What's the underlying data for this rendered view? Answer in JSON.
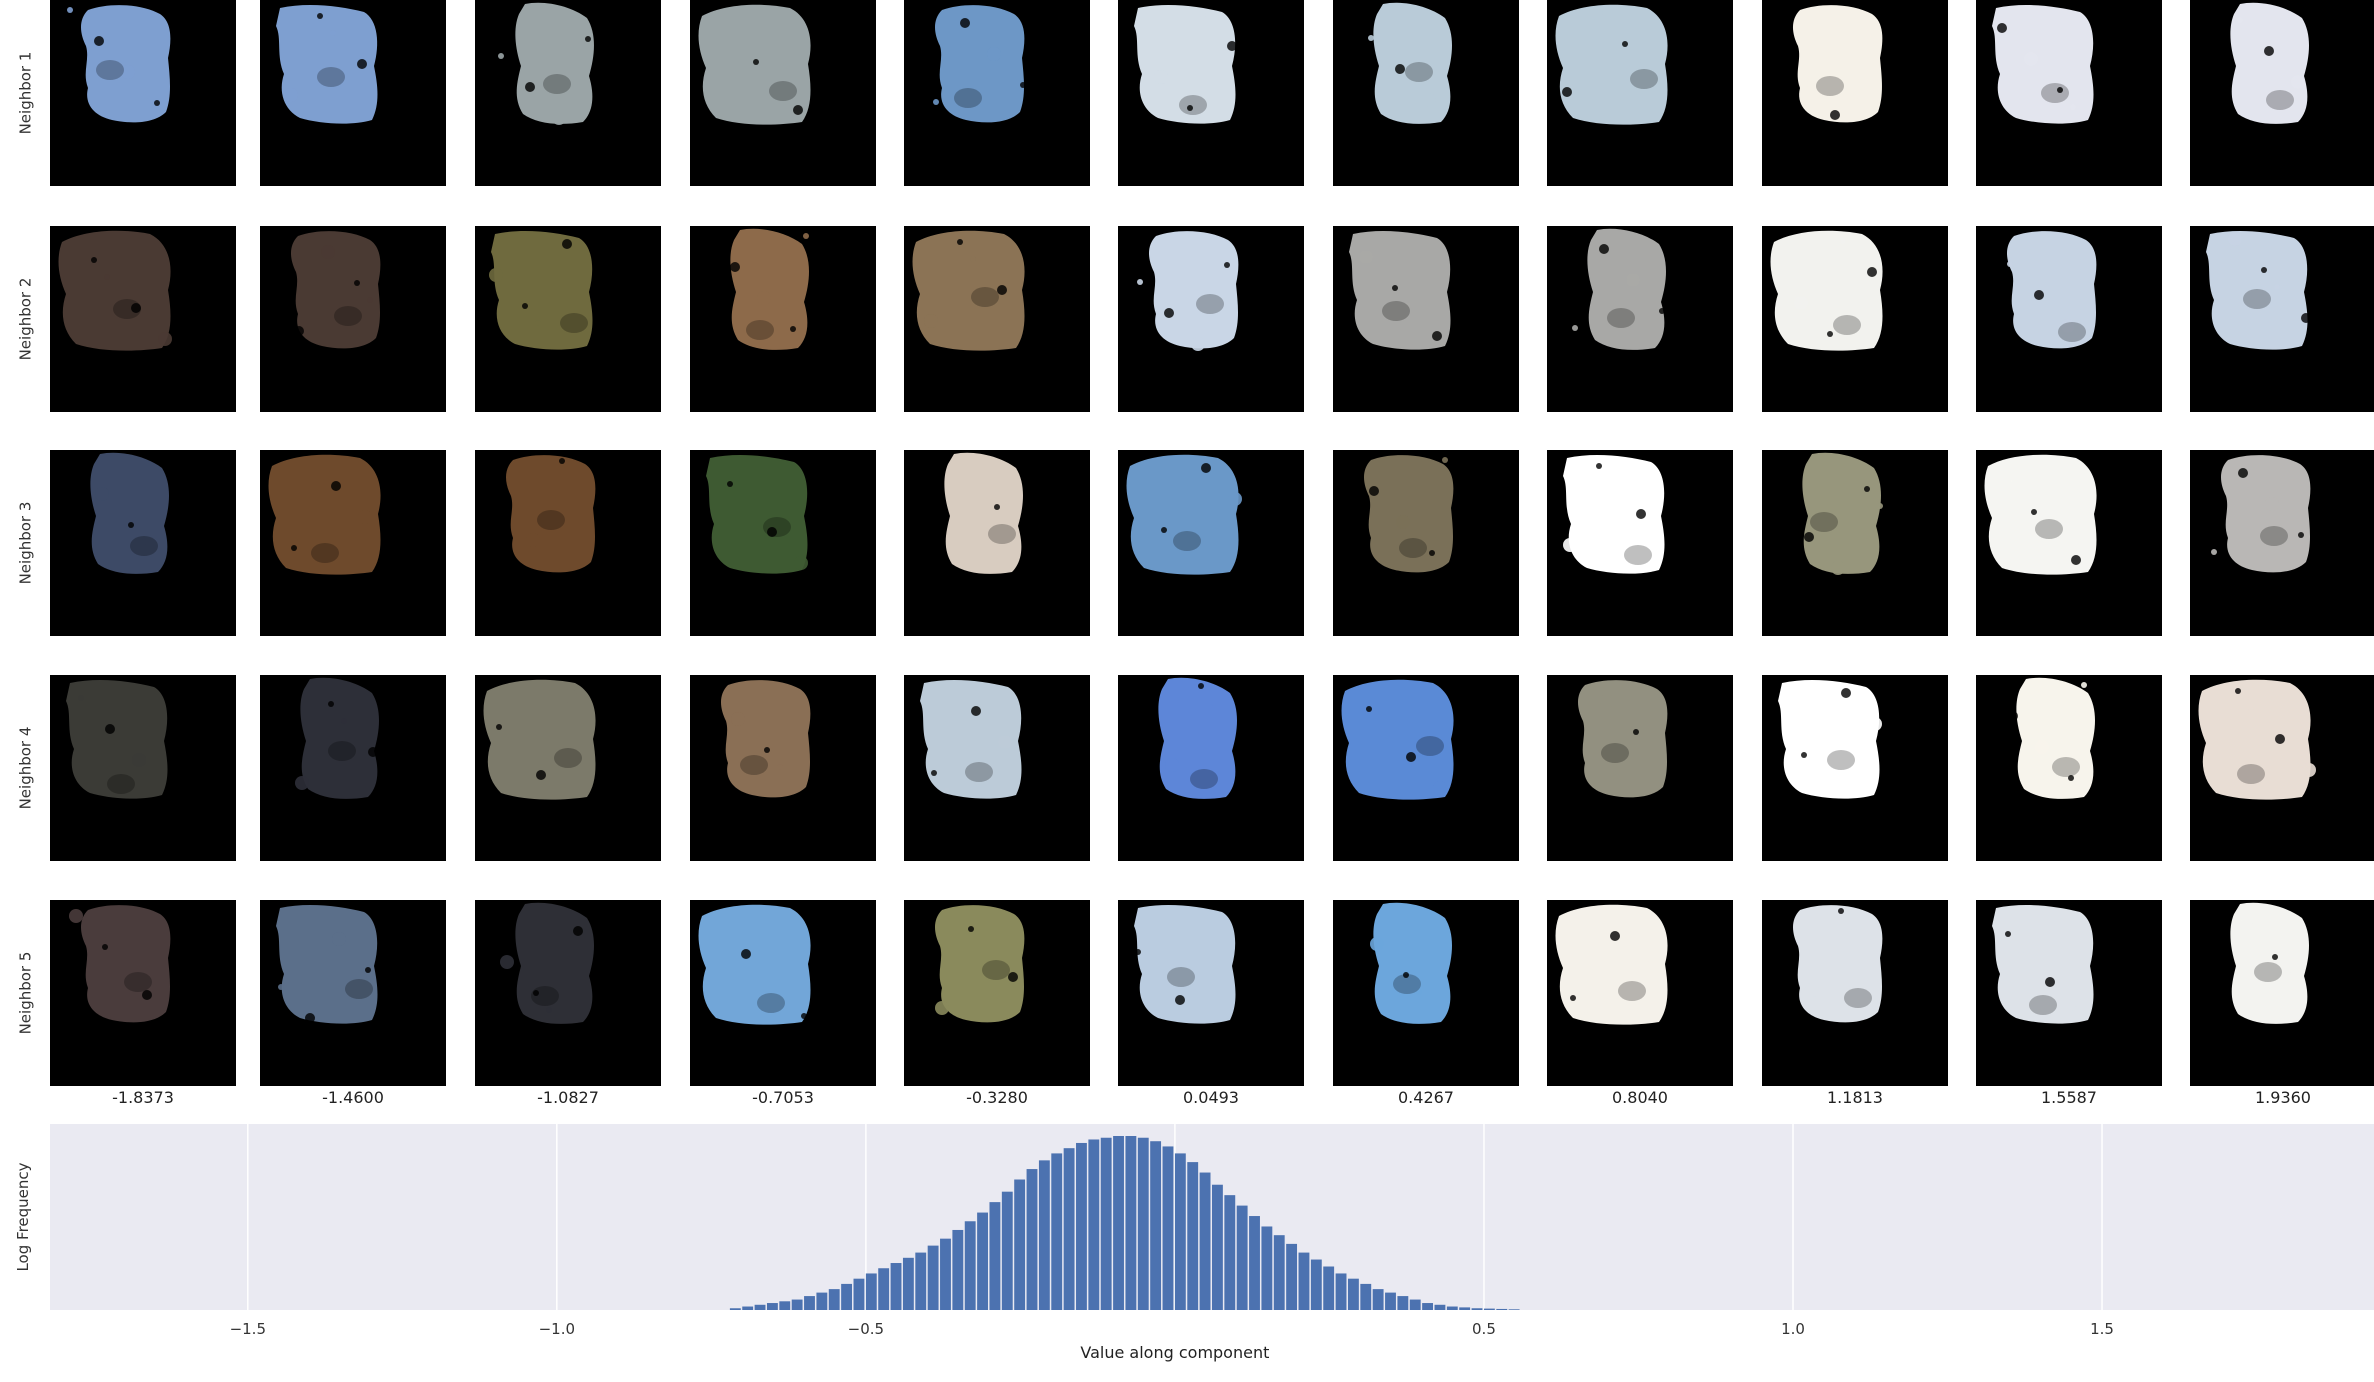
{
  "figure": {
    "row_labels": [
      "Neighbor 1",
      "Neighbor 2",
      "Neighbor 3",
      "Neighbor 4",
      "Neighbor 5"
    ],
    "column_values": [
      "-1.8373",
      "-1.4600",
      "-1.0827",
      "-0.7053",
      "-0.3280",
      "0.0493",
      "0.4267",
      "0.8040",
      "1.1813",
      "1.5587",
      "1.9360"
    ],
    "patch_colors": [
      [
        "#7e9fd0",
        "#7e9fd0",
        "#9aa4a6",
        "#9aa4a6",
        "#6d97c6",
        "#d3dde6",
        "#b9cbd8",
        "#b9cbd8",
        "#f5f1e8",
        "#e3e5ee",
        "#e3e5ee"
      ],
      [
        "#4a3a33",
        "#4a3a33",
        "#6f6a3e",
        "#8d6a4a",
        "#8b7355",
        "#c9d6e6",
        "#a8a8a6",
        "#a8a8a6",
        "#f2f2ee",
        "#c6d3e3",
        "#c6d3e3"
      ],
      [
        "#3d4a66",
        "#6e4a2c",
        "#6e4a2c",
        "#3e5a32",
        "#d8ccc0",
        "#6a98c8",
        "#7a7058",
        "#ffffff",
        "#97967c",
        "#f5f5f2",
        "#b9b7b5"
      ],
      [
        "#3b3b36",
        "#2d2f38",
        "#7c7a6a",
        "#8a6f55",
        "#bccbd8",
        "#5d86d8",
        "#5a8ad6",
        "#929080",
        "#ffffff",
        "#f7f4ec",
        "#e8ddd4"
      ],
      [
        "#4a3c3c",
        "#5b6f8a",
        "#2e2f36",
        "#72a6d8",
        "#8a8a5c",
        "#bacce0",
        "#6ca6dc",
        "#f4f1ea",
        "#dde2e8",
        "#dde2e8",
        "#f3f3f0"
      ]
    ]
  },
  "chart_data": {
    "type": "bar",
    "ylabel": "Log Frequency",
    "xlabel": "Value along component",
    "xlim": [
      -1.82,
      1.94
    ],
    "xticks": [
      -1.5,
      -1.0,
      -0.5,
      0.5,
      1.0,
      1.5
    ],
    "xtick_labels": [
      "−1.5",
      "−1.0",
      "−0.5",
      "0.5",
      "1.0",
      "1.5"
    ],
    "xgrid": [
      -1.5,
      -1.0,
      -0.5,
      0.0,
      0.5,
      1.0,
      1.5
    ],
    "grid": true,
    "background": "#eaeaf2",
    "bar_color": "#4c72b0",
    "bin_width": 0.02,
    "bin_start": -0.72,
    "values": [
      0.01,
      0.02,
      0.03,
      0.04,
      0.05,
      0.06,
      0.08,
      0.1,
      0.12,
      0.15,
      0.18,
      0.21,
      0.24,
      0.27,
      0.3,
      0.33,
      0.37,
      0.41,
      0.46,
      0.51,
      0.56,
      0.62,
      0.68,
      0.75,
      0.81,
      0.86,
      0.9,
      0.93,
      0.96,
      0.98,
      0.99,
      1.0,
      1.0,
      0.99,
      0.97,
      0.94,
      0.9,
      0.85,
      0.79,
      0.72,
      0.66,
      0.6,
      0.54,
      0.48,
      0.43,
      0.38,
      0.33,
      0.29,
      0.25,
      0.21,
      0.18,
      0.15,
      0.12,
      0.1,
      0.08,
      0.06,
      0.04,
      0.03,
      0.02,
      0.015,
      0.01,
      0.008,
      0.006,
      0.004
    ]
  }
}
